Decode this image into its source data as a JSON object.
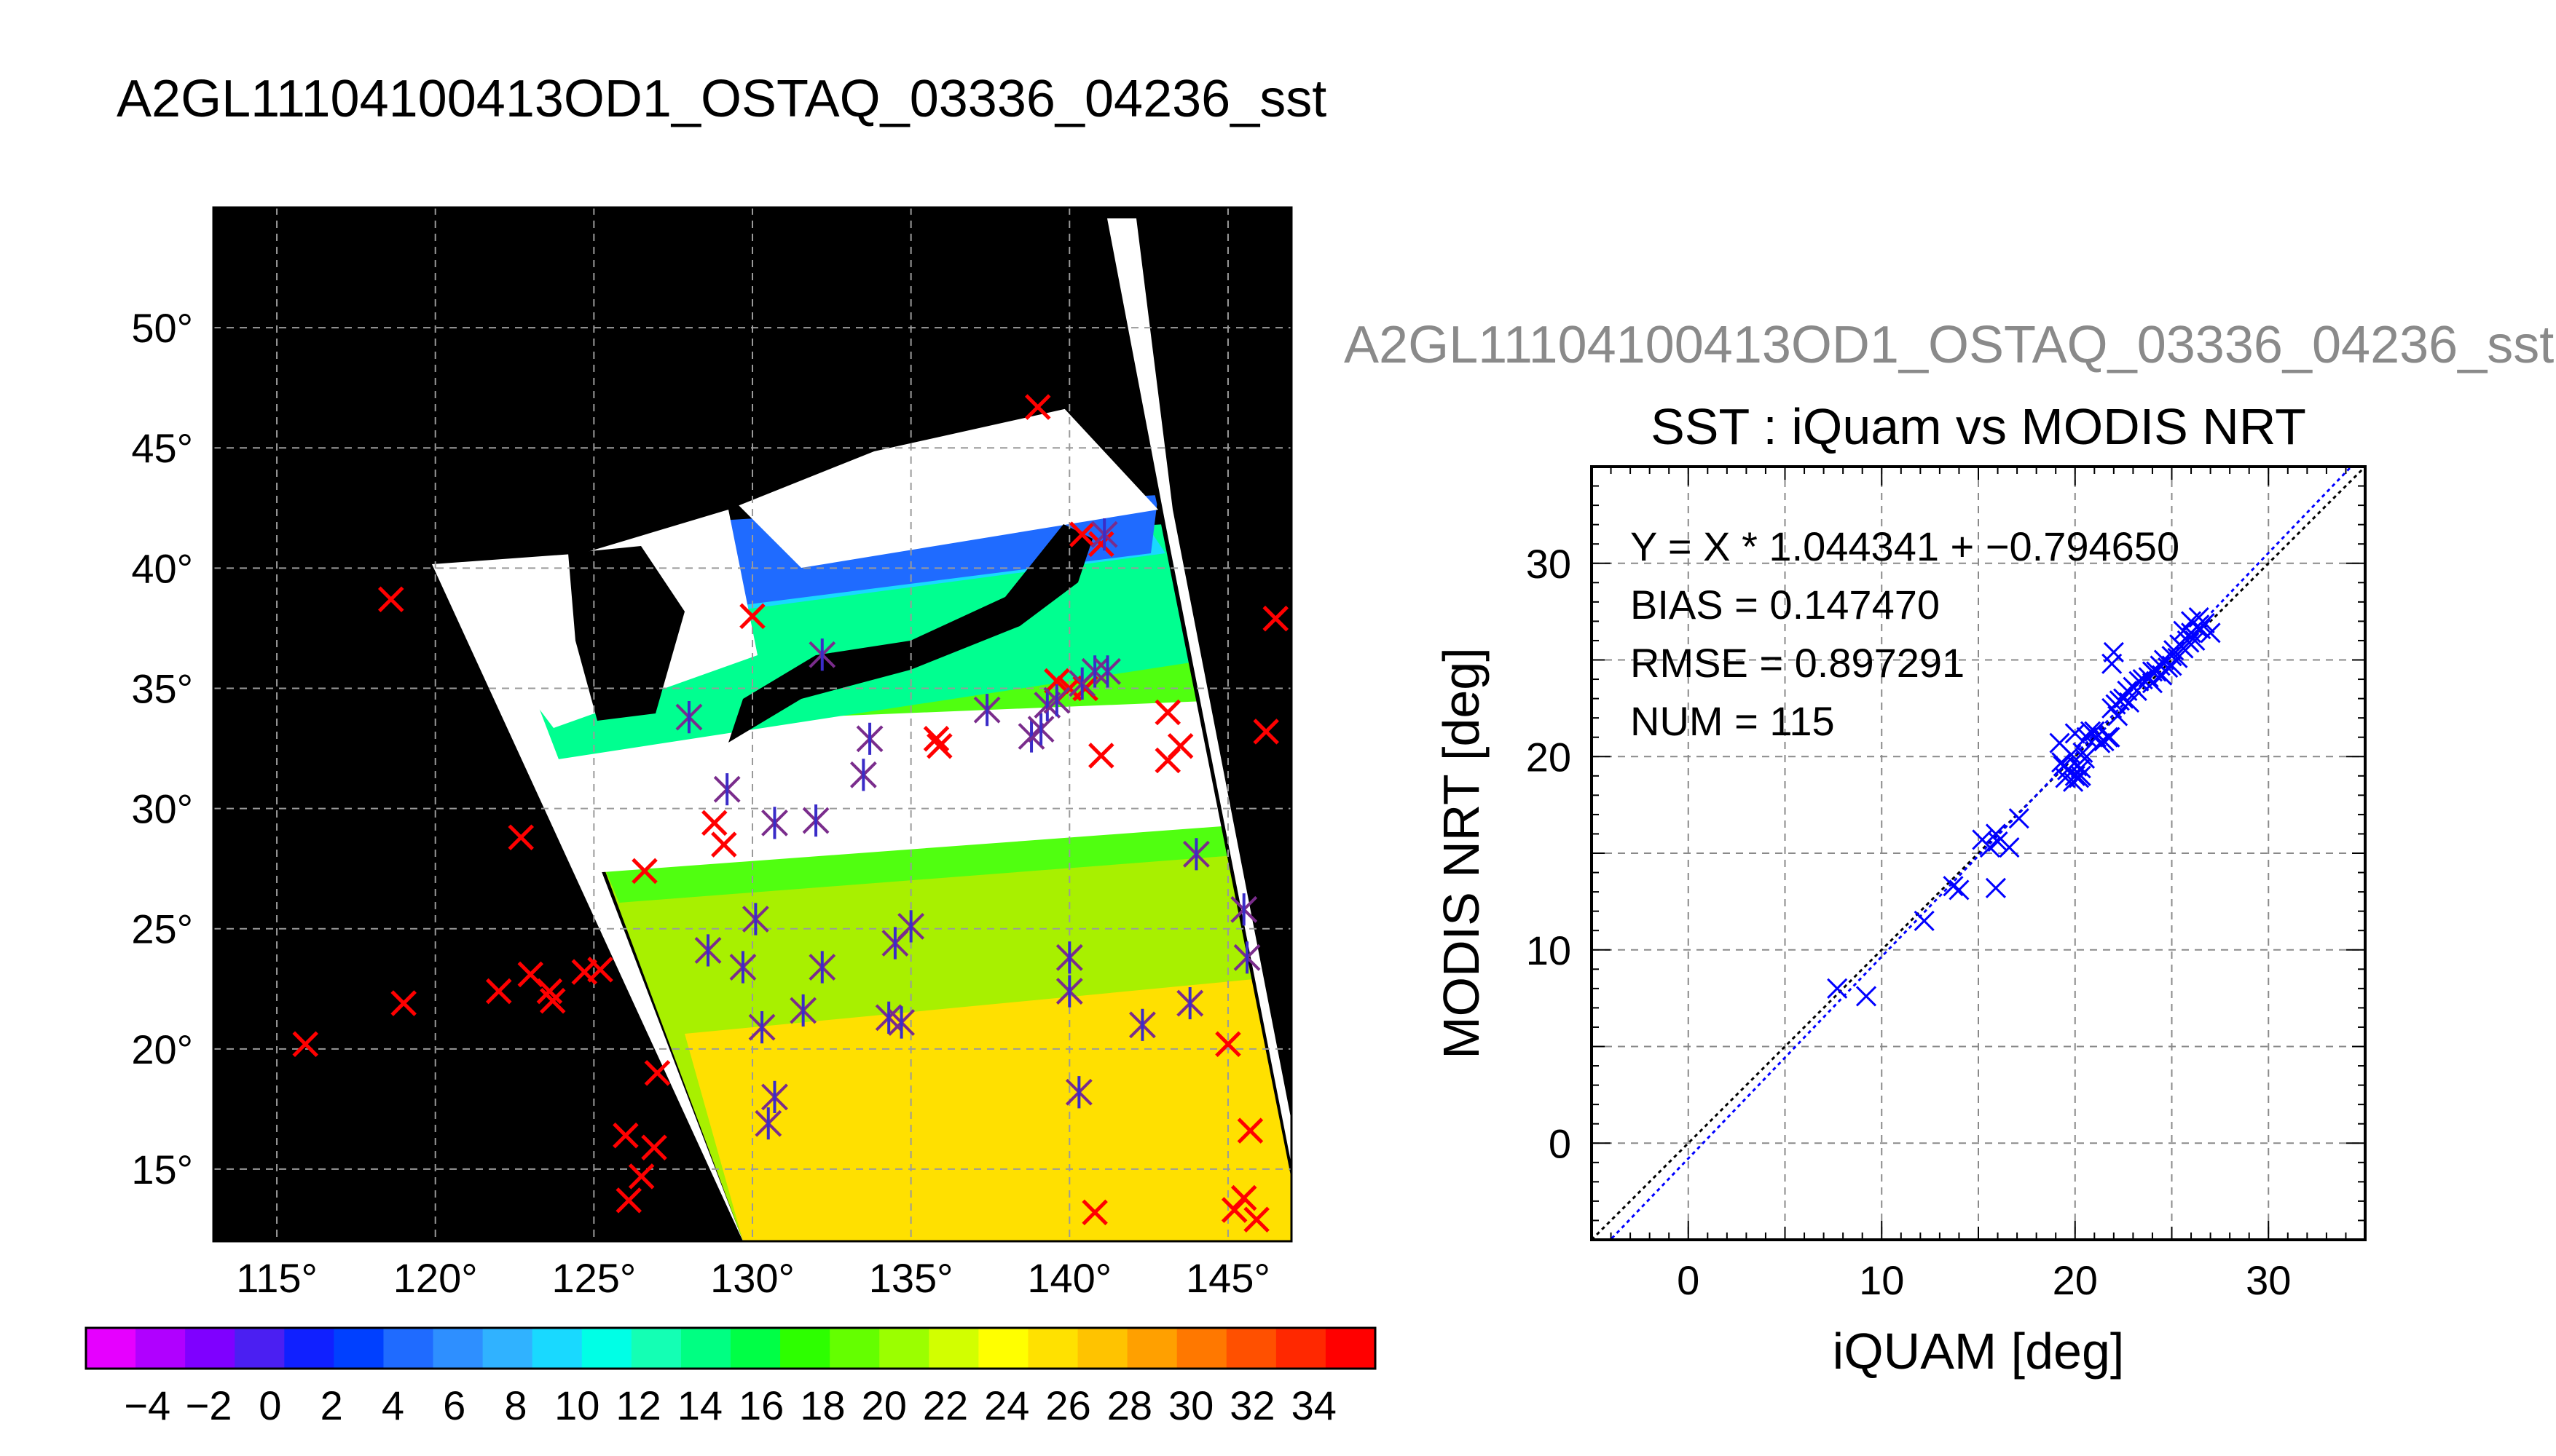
{
  "page_title": "A2GL11104100413OD1_OSTAQ_03336_04236_sst",
  "right_title": "A2GL11104100413OD1_OSTAQ_03336_04236_sst",
  "colorbar": {
    "labels": [
      "−4",
      "−2",
      "0",
      "2",
      "4",
      "6",
      "8",
      "10",
      "12",
      "14",
      "16",
      "18",
      "20",
      "22",
      "24",
      "26",
      "28",
      "30",
      "32",
      "34"
    ],
    "colors": [
      "#e600ff",
      "#b000ff",
      "#7f00ff",
      "#4b1ff2",
      "#1020ff",
      "#0040ff",
      "#1f6bff",
      "#2e8fff",
      "#30b2ff",
      "#19d9ff",
      "#00ffe6",
      "#14ffb4",
      "#00ff82",
      "#00ff46",
      "#2dff00",
      "#64ff00",
      "#9bff00",
      "#d2ff00",
      "#ffff00",
      "#ffe100",
      "#ffc300",
      "#ffa000",
      "#ff7800",
      "#ff5000",
      "#ff2800",
      "#ff0000"
    ]
  },
  "chart_data": [
    {
      "type": "scatter",
      "title": "",
      "xlabel": "",
      "ylabel": "",
      "xlim": [
        113,
        147
      ],
      "ylim": [
        12,
        55
      ],
      "xticks": [
        115,
        120,
        125,
        130,
        135,
        140,
        145
      ],
      "yticks": [
        15,
        20,
        25,
        30,
        35,
        40,
        45,
        50
      ],
      "xtick_labels": [
        "115°",
        "120°",
        "125°",
        "130°",
        "135°",
        "140°",
        "145°"
      ],
      "ytick_labels": [
        "15°",
        "20°",
        "25°",
        "30°",
        "35°",
        "40°",
        "45°",
        "50°"
      ],
      "grid": true,
      "series": [
        {
          "marker": "x",
          "color": "#ff0000",
          "points": [
            [
              118.6,
              38.7
            ],
            [
              122.7,
              28.8
            ],
            [
              115.9,
              20.2
            ],
            [
              119.0,
              21.9
            ],
            [
              122.0,
              22.4
            ],
            [
              123.0,
              23.1
            ],
            [
              123.7,
              22.0
            ],
            [
              123.6,
              22.4
            ],
            [
              124.7,
              23.2
            ],
            [
              125.2,
              23.3
            ],
            [
              126.6,
              27.4
            ],
            [
              127.0,
              19.0
            ],
            [
              126.0,
              16.4
            ],
            [
              126.9,
              15.9
            ],
            [
              126.5,
              14.7
            ],
            [
              126.1,
              13.7
            ],
            [
              128.8,
              29.4
            ],
            [
              129.1,
              28.5
            ],
            [
              130.0,
              38.0
            ],
            [
              135.8,
              32.9
            ],
            [
              135.9,
              32.6
            ],
            [
              141.0,
              32.2
            ],
            [
              143.1,
              32.0
            ],
            [
              143.5,
              32.6
            ],
            [
              143.1,
              34.0
            ],
            [
              146.2,
              33.2
            ],
            [
              146.5,
              37.9
            ],
            [
              140.4,
              41.4
            ],
            [
              141.0,
              41.0
            ],
            [
              139.0,
              46.7
            ],
            [
              145.7,
              16.6
            ],
            [
              145.0,
              20.2
            ],
            [
              145.5,
              13.8
            ],
            [
              145.9,
              12.9
            ],
            [
              145.2,
              13.3
            ],
            [
              140.8,
              13.2
            ],
            [
              140.0,
              35.0
            ],
            [
              140.5,
              35.0
            ],
            [
              139.6,
              35.3
            ]
          ]
        },
        {
          "marker": "star",
          "color": "#7a2c8c",
          "points": [
            [
              128.0,
              33.8
            ],
            [
              129.2,
              30.8
            ],
            [
              130.7,
              29.4
            ],
            [
              132.0,
              29.5
            ],
            [
              132.2,
              36.4
            ],
            [
              133.5,
              31.4
            ],
            [
              133.7,
              32.9
            ],
            [
              137.4,
              34.1
            ],
            [
              138.8,
              33.0
            ],
            [
              139.1,
              33.3
            ],
            [
              139.3,
              34.3
            ],
            [
              139.6,
              34.5
            ],
            [
              140.4,
              35.2
            ],
            [
              140.8,
              35.7
            ],
            [
              141.2,
              35.7
            ],
            [
              141.1,
              41.4
            ],
            [
              144.0,
              28.1
            ],
            [
              145.5,
              25.8
            ],
            [
              145.6,
              23.8
            ],
            [
              143.8,
              21.9
            ],
            [
              142.3,
              21.0
            ],
            [
              140.0,
              22.4
            ],
            [
              140.0,
              23.8
            ],
            [
              140.3,
              18.2
            ],
            [
              131.6,
              21.6
            ],
            [
              132.2,
              23.4
            ],
            [
              134.3,
              21.3
            ],
            [
              134.7,
              21.1
            ],
            [
              134.5,
              24.4
            ],
            [
              135.0,
              25.1
            ],
            [
              130.1,
              25.4
            ],
            [
              130.3,
              20.9
            ],
            [
              129.7,
              23.4
            ],
            [
              128.6,
              24.1
            ],
            [
              130.5,
              16.9
            ],
            [
              130.7,
              18.0
            ]
          ]
        }
      ]
    },
    {
      "type": "scatter",
      "title": "SST : iQuam vs MODIS NRT",
      "xlabel": "iQUAM [deg]",
      "ylabel": "MODIS NRT [deg]",
      "xlim": [
        -5,
        35
      ],
      "ylim": [
        -5,
        35
      ],
      "xticks": [
        0,
        10,
        20,
        30
      ],
      "yticks": [
        0,
        10,
        20,
        30
      ],
      "grid": true,
      "annotations": [
        "Y = X * 1.044341 + −0.794650",
        "BIAS = 0.147470",
        "RMSE = 0.897291",
        "NUM = 115"
      ],
      "fit": {
        "slope": 1.044341,
        "intercept": -0.79465
      },
      "series": [
        {
          "marker": "x",
          "color": "#0000ff",
          "points": [
            [
              7.7,
              8.0
            ],
            [
              9.2,
              7.6
            ],
            [
              12.2,
              11.5
            ],
            [
              13.7,
              13.3
            ],
            [
              14.0,
              13.1
            ],
            [
              15.2,
              15.7
            ],
            [
              15.6,
              15.3
            ],
            [
              15.9,
              16.0
            ],
            [
              16.0,
              15.6
            ],
            [
              15.9,
              13.2
            ],
            [
              16.6,
              15.3
            ],
            [
              17.1,
              16.8
            ],
            [
              19.2,
              20.7
            ],
            [
              19.3,
              19.7
            ],
            [
              19.4,
              19.5
            ],
            [
              19.5,
              18.9
            ],
            [
              19.6,
              19.3
            ],
            [
              19.8,
              20.1
            ],
            [
              19.9,
              18.7
            ],
            [
              20.0,
              19.0
            ],
            [
              20.1,
              19.5
            ],
            [
              20.2,
              18.9
            ],
            [
              20.3,
              19.4
            ],
            [
              20.4,
              20.2
            ],
            [
              20.5,
              19.9
            ],
            [
              20.0,
              21.2
            ],
            [
              20.6,
              21.0
            ],
            [
              21.1,
              21.0
            ],
            [
              21.3,
              20.7
            ],
            [
              21.5,
              20.8
            ],
            [
              21.8,
              21.0
            ],
            [
              21.9,
              22.5
            ],
            [
              22.1,
              22.7
            ],
            [
              22.3,
              22.9
            ],
            [
              22.5,
              23.0
            ],
            [
              22.2,
              22.1
            ],
            [
              21.9,
              24.8
            ],
            [
              22.0,
              25.4
            ],
            [
              22.7,
              23.4
            ],
            [
              23.0,
              23.6
            ],
            [
              23.2,
              23.4
            ],
            [
              23.5,
              24.0
            ],
            [
              23.8,
              24.1
            ],
            [
              24.0,
              23.8
            ],
            [
              24.2,
              24.4
            ],
            [
              24.4,
              24.7
            ],
            [
              24.5,
              24.2
            ],
            [
              24.6,
              25.0
            ],
            [
              24.8,
              24.6
            ],
            [
              25.0,
              25.2
            ],
            [
              25.1,
              25.5
            ],
            [
              25.3,
              25.1
            ],
            [
              25.4,
              25.8
            ],
            [
              25.6,
              25.6
            ],
            [
              25.8,
              26.0
            ],
            [
              25.9,
              25.9
            ],
            [
              26.0,
              26.4
            ],
            [
              26.2,
              26.0
            ],
            [
              26.3,
              26.7
            ],
            [
              26.5,
              26.6
            ],
            [
              26.7,
              26.9
            ],
            [
              26.0,
              27.0
            ],
            [
              26.4,
              27.2
            ],
            [
              25.6,
              26.5
            ],
            [
              27.0,
              26.4
            ],
            [
              25.0,
              24.7
            ],
            [
              24.0,
              24.4
            ],
            [
              23.3,
              23.9
            ],
            [
              22.8,
              22.8
            ],
            [
              21.7,
              21.0
            ],
            [
              21.0,
              21.3
            ],
            [
              20.8,
              21.3
            ],
            [
              20.3,
              19.0
            ]
          ]
        }
      ]
    }
  ]
}
